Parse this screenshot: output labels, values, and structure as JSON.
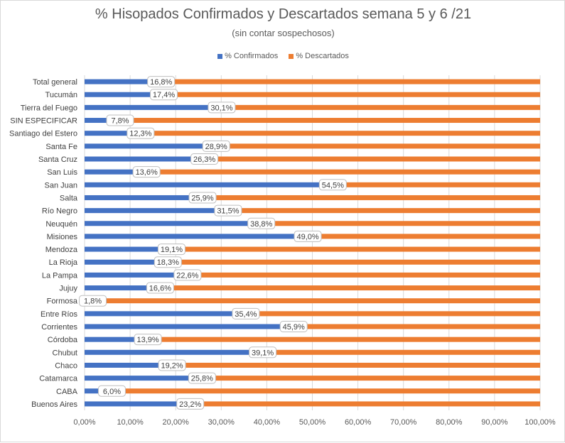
{
  "chart_data": {
    "type": "bar",
    "orientation": "horizontal",
    "stacked": "percent",
    "title": "% Hisopados  Confirmados y Descartados semana  5 y 6 /21",
    "subtitle": "(sin contar sospechosos)",
    "xlabel": "",
    "ylabel": "",
    "xlim": [
      0,
      100
    ],
    "xticks": [
      "0,00%",
      "10,00%",
      "20,00%",
      "30,00%",
      "40,00%",
      "50,00%",
      "60,00%",
      "70,00%",
      "80,00%",
      "90,00%",
      "100,00%"
    ],
    "grid": true,
    "legend_position": "top",
    "categories": [
      "Total general",
      "Tucumán",
      "Tierra del Fuego",
      "SIN ESPECIFICAR",
      "Santiago del Estero",
      "Santa Fe",
      "Santa Cruz",
      "San Luis",
      "San Juan",
      "Salta",
      "Río Negro",
      "Neuquén",
      "Misiones",
      "Mendoza",
      "La Rioja",
      "La Pampa",
      "Jujuy",
      "Formosa",
      "Entre Ríos",
      "Corrientes",
      "Córdoba",
      "Chubut",
      "Chaco",
      "Catamarca",
      "CABA",
      "Buenos Aires"
    ],
    "series": [
      {
        "name": "% Confirmados",
        "color": "#4472c4",
        "values": [
          16.8,
          17.4,
          30.1,
          7.8,
          12.3,
          28.9,
          26.3,
          13.6,
          54.5,
          25.9,
          31.5,
          38.8,
          49.0,
          19.1,
          18.3,
          22.6,
          16.6,
          1.8,
          35.4,
          45.9,
          13.9,
          39.1,
          19.2,
          25.8,
          6.0,
          23.2
        ],
        "labels": [
          "16,8%",
          "17,4%",
          "30,1%",
          "7,8%",
          "12,3%",
          "28,9%",
          "26,3%",
          "13,6%",
          "54,5%",
          "25,9%",
          "31,5%",
          "38,8%",
          "49,0%",
          "19,1%",
          "18,3%",
          "22,6%",
          "16,6%",
          "1,8%",
          "35,4%",
          "45,9%",
          "13,9%",
          "39,1%",
          "19,2%",
          "25,8%",
          "6,0%",
          "23,2%"
        ]
      },
      {
        "name": "% Descartados",
        "color": "#ed7d31",
        "values": [
          83.2,
          82.6,
          69.9,
          92.2,
          87.7,
          71.1,
          73.7,
          86.4,
          45.5,
          74.1,
          68.5,
          61.2,
          51.0,
          80.9,
          81.7,
          77.4,
          83.4,
          98.2,
          64.6,
          54.1,
          86.1,
          60.9,
          80.8,
          74.2,
          94.0,
          76.8
        ]
      }
    ]
  }
}
